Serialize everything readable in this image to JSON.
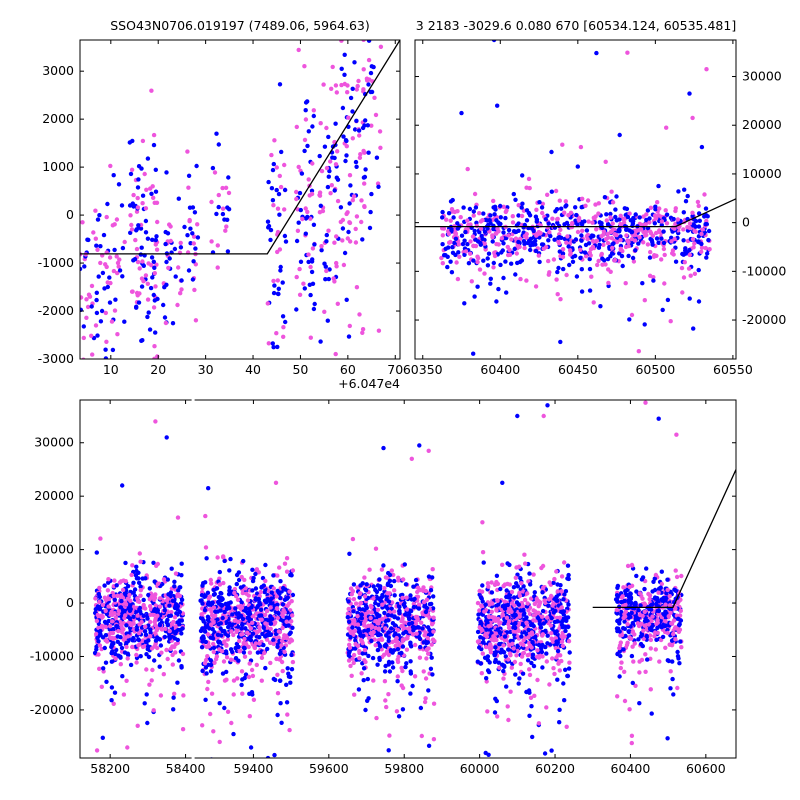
{
  "title_left": "SSO43N0706.019197 (7489.06, 5964.63)",
  "title_right": "3 2183 -3029.6 0.080 670 [60534.124, 60535.481]",
  "colors": {
    "blue": "#0000ff",
    "magenta": "#ee55dd",
    "line": "#000000"
  },
  "chart_data": [
    {
      "type": "scatter",
      "name": "zoom",
      "x_offset_label": "+6.047e4",
      "xlim": [
        60473.5,
        60541
      ],
      "ylim": [
        -3000,
        3650
      ],
      "xticks": [
        10,
        20,
        30,
        40,
        50,
        60,
        70
      ],
      "yticks": [
        -3000,
        -2000,
        -1000,
        0,
        1000,
        2000,
        3000
      ],
      "clusters": [
        {
          "x": 60476,
          "w": 3,
          "y": -1500,
          "s": 900,
          "n": 60
        },
        {
          "x": 60481,
          "w": 2,
          "y": -1100,
          "s": 900,
          "n": 40
        },
        {
          "x": 60487,
          "w": 3,
          "y": -700,
          "s": 1100,
          "n": 120
        },
        {
          "x": 60493,
          "w": 2,
          "y": -1200,
          "s": 900,
          "n": 40
        },
        {
          "x": 60497,
          "w": 1.5,
          "y": -300,
          "s": 900,
          "n": 30
        },
        {
          "x": 60503,
          "w": 2,
          "y": 200,
          "s": 500,
          "n": 25
        },
        {
          "x": 60515,
          "w": 2,
          "y": -600,
          "s": 1400,
          "n": 60
        },
        {
          "x": 60521,
          "w": 2,
          "y": 400,
          "s": 1300,
          "n": 70
        },
        {
          "x": 60526,
          "w": 2,
          "y": 700,
          "s": 1500,
          "n": 70
        },
        {
          "x": 60531,
          "w": 2.5,
          "y": 1300,
          "s": 1300,
          "n": 80
        },
        {
          "x": 60535,
          "w": 2,
          "y": 2200,
          "s": 1100,
          "n": 40
        }
      ],
      "model_line": {
        "x": [
          60473.5,
          60513,
          60541
        ],
        "y": [
          -810,
          -810,
          3650
        ]
      }
    },
    {
      "type": "scatter",
      "name": "recent",
      "xlim": [
        60345,
        60552
      ],
      "ylim": [
        -28000,
        37500
      ],
      "xticks": [
        60350,
        60400,
        60450,
        60500,
        60550
      ],
      "yticks": [
        -20000,
        -10000,
        0,
        10000,
        20000,
        30000
      ],
      "cluster": {
        "x0": 60362,
        "x1": 60535,
        "y": -2000,
        "s": 3500,
        "n": 900
      },
      "outliers": [
        {
          "x": 60375,
          "y": 22500
        },
        {
          "x": 60379,
          "y": 11000
        },
        {
          "x": 60398,
          "y": 24000
        },
        {
          "x": 60404,
          "y": 2500
        },
        {
          "x": 60433,
          "y": 14500
        },
        {
          "x": 60440,
          "y": 16000
        },
        {
          "x": 60450,
          "y": 11500
        },
        {
          "x": 60452,
          "y": 15500
        },
        {
          "x": 60462,
          "y": 34800
        },
        {
          "x": 60468,
          "y": 12500
        },
        {
          "x": 60477,
          "y": 18000
        },
        {
          "x": 60482,
          "y": 34900
        },
        {
          "x": 60502,
          "y": 7500
        },
        {
          "x": 60507,
          "y": 19500
        },
        {
          "x": 60522,
          "y": 26500
        },
        {
          "x": 60524,
          "y": 21500
        },
        {
          "x": 60530,
          "y": 15500
        },
        {
          "x": 60533,
          "y": 31500
        },
        {
          "x": 60396,
          "y": 37500
        },
        {
          "x": 60436,
          "y": 6500
        }
      ],
      "model_line": {
        "x": [
          60345,
          60513,
          60552
        ],
        "y": [
          -810,
          -810,
          4900
        ]
      }
    },
    {
      "type": "scatter",
      "name": "full",
      "xlim": [
        58120,
        60680
      ],
      "ylim": [
        -29000,
        38000
      ],
      "broken_axis_x": [
        58420,
        59240
      ],
      "xticks": [
        58200,
        58400,
        59400,
        59600,
        59800,
        60000,
        60200,
        60400,
        60600
      ],
      "yticks": [
        -20000,
        -10000,
        0,
        10000,
        20000,
        30000
      ],
      "seasons": [
        {
          "x0": 58160,
          "x1": 58395,
          "y": -2200,
          "s": 4000,
          "n": 700
        },
        {
          "x0": 59260,
          "x1": 59505,
          "y": -3000,
          "s": 4500,
          "n": 800
        },
        {
          "x0": 59650,
          "x1": 59880,
          "y": -3000,
          "s": 4200,
          "n": 700
        },
        {
          "x0": 59995,
          "x1": 60240,
          "y": -3300,
          "s": 4300,
          "n": 800
        },
        {
          "x0": 60362,
          "x1": 60535,
          "y": -2000,
          "s": 3500,
          "n": 500
        }
      ],
      "outliers": [
        {
          "x": 58232,
          "y": 22000
        },
        {
          "x": 58320,
          "y": 34000
        },
        {
          "x": 58350,
          "y": 31000
        },
        {
          "x": 58380,
          "y": 16000
        },
        {
          "x": 59280,
          "y": 21500
        },
        {
          "x": 59460,
          "y": 22500
        },
        {
          "x": 59745,
          "y": 29000
        },
        {
          "x": 59820,
          "y": 27000
        },
        {
          "x": 59840,
          "y": 29500
        },
        {
          "x": 59865,
          "y": 28500
        },
        {
          "x": 60100,
          "y": 35000
        },
        {
          "x": 60170,
          "y": 35000
        },
        {
          "x": 60180,
          "y": 37000
        },
        {
          "x": 60440,
          "y": 37500
        },
        {
          "x": 60475,
          "y": 34500
        },
        {
          "x": 60522,
          "y": 31500
        },
        {
          "x": 60060,
          "y": 22500
        }
      ],
      "model_line": {
        "x": [
          60300,
          60513,
          60680
        ],
        "y": [
          -810,
          -810,
          25000
        ]
      }
    }
  ]
}
